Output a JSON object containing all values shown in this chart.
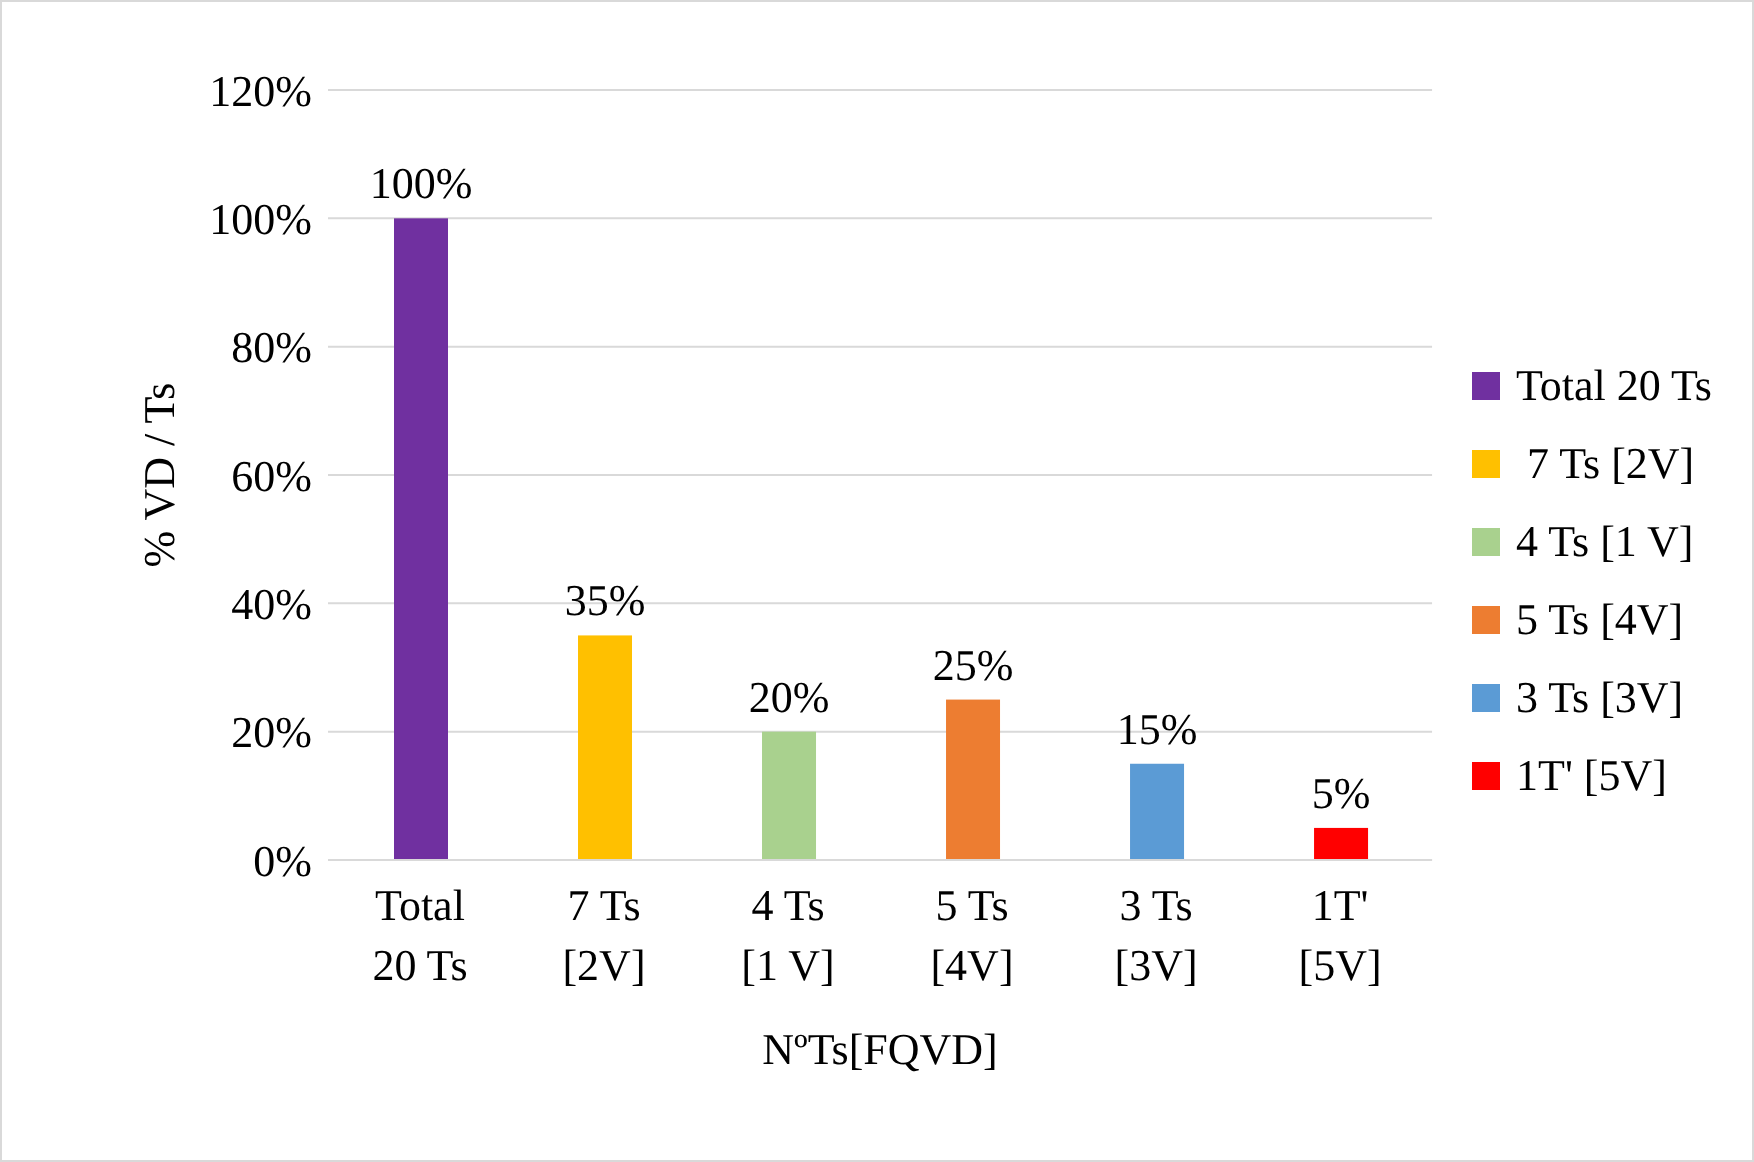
{
  "chart_data": {
    "type": "bar",
    "xlabel": "NºTs[FQVD]",
    "ylabel": "% VD / Ts",
    "categories": [
      "Total 20 Ts",
      "7 Ts [2V]",
      "4 Ts [1 V]",
      "5 Ts [4V]",
      "3 Ts [3V]",
      "1T' [5V]"
    ],
    "series": [
      {
        "name": "Total 20 Ts",
        "color": "#7030a0",
        "values": [
          100,
          null,
          null,
          null,
          null,
          null
        ],
        "value_labels": [
          "100%",
          null,
          null,
          null,
          null,
          null
        ]
      },
      {
        "name": " 7 Ts [2V]",
        "color": "#ffc000",
        "values": [
          null,
          35,
          null,
          null,
          null,
          null
        ],
        "value_labels": [
          null,
          "35%",
          null,
          null,
          null,
          null
        ]
      },
      {
        "name": "4 Ts [1 V]",
        "color": "#a9d18e",
        "values": [
          null,
          null,
          20,
          null,
          null,
          null
        ],
        "value_labels": [
          null,
          null,
          "20%",
          null,
          null,
          null
        ]
      },
      {
        "name": "5 Ts [4V]",
        "color": "#ed7d31",
        "values": [
          null,
          null,
          null,
          25,
          null,
          null
        ],
        "value_labels": [
          null,
          null,
          null,
          "25%",
          null,
          null
        ]
      },
      {
        "name": "3 Ts [3V]",
        "color": "#5b9bd5",
        "values": [
          null,
          null,
          null,
          null,
          15,
          null
        ],
        "value_labels": [
          null,
          null,
          null,
          null,
          "15%",
          null
        ]
      },
      {
        "name": "1T' [5V]",
        "color": "#ff0000",
        "values": [
          null,
          null,
          null,
          null,
          null,
          5
        ],
        "value_labels": [
          null,
          null,
          null,
          null,
          null,
          "5%"
        ]
      }
    ],
    "ylim": [
      0,
      120
    ],
    "yticks": [
      {
        "value": 0,
        "label": "0%"
      },
      {
        "value": 20,
        "label": "20%"
      },
      {
        "value": 40,
        "label": "40%"
      },
      {
        "value": 60,
        "label": "60%"
      },
      {
        "value": 80,
        "label": "80%"
      },
      {
        "value": 100,
        "label": "100%"
      },
      {
        "value": 120,
        "label": "120%"
      }
    ],
    "grid": "y",
    "legend": "right"
  }
}
